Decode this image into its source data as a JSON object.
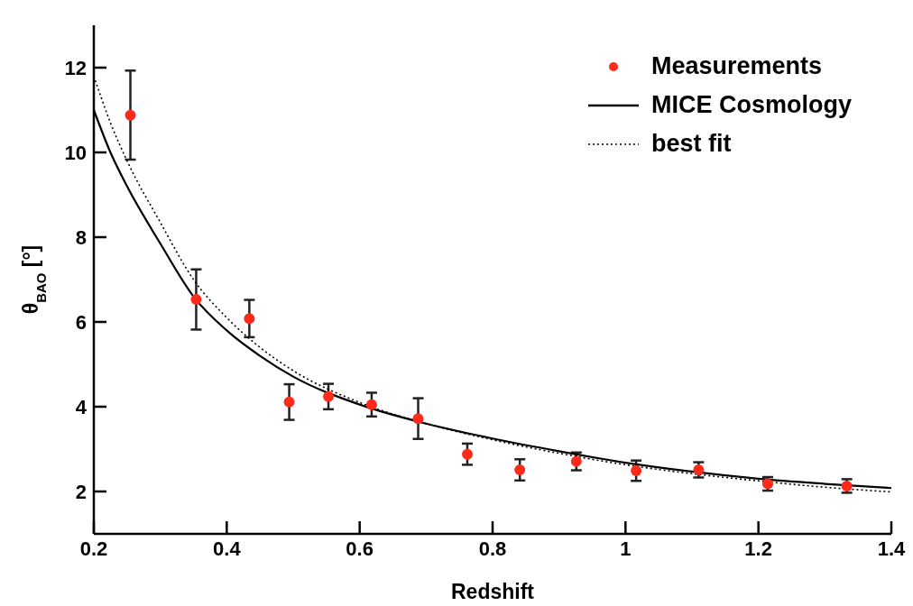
{
  "chart_data": {
    "type": "scatter",
    "xlabel": "Redshift",
    "ylabel": "θ$_{BAO}$ [°]",
    "xlim": [
      0.2,
      1.4
    ],
    "xticks": [
      0.2,
      0.4,
      0.6,
      0.8,
      1,
      1.2,
      1.4
    ],
    "ylim": [
      1,
      13
    ],
    "yticks": [
      2,
      4,
      6,
      8,
      10,
      12
    ],
    "grid": false,
    "legend": "top right",
    "series": [
      {
        "name": "Measurements",
        "color": "#ff2a1a",
        "marker": "circle",
        "x": [
          0.255,
          0.354,
          0.434,
          0.494,
          0.553,
          0.618,
          0.688,
          0.762,
          0.841,
          0.926,
          1.016,
          1.11,
          1.214,
          1.333
        ],
        "values": [
          10.88,
          6.53,
          6.08,
          4.11,
          4.24,
          4.05,
          3.72,
          2.88,
          2.51,
          2.71,
          2.49,
          2.51,
          2.18,
          2.13
        ],
        "errors": [
          1.05,
          0.71,
          0.44,
          0.42,
          0.3,
          0.28,
          0.48,
          0.25,
          0.25,
          0.21,
          0.24,
          0.18,
          0.16,
          0.16
        ]
      },
      {
        "name": "MICE Cosmology",
        "type": "line",
        "color": "#000000",
        "marker": "none",
        "line_style": "solid",
        "x": [
          0.2,
          0.225,
          0.25,
          0.3,
          0.35,
          0.4,
          0.45,
          0.5,
          0.6,
          0.7,
          0.8,
          0.9,
          1.0,
          1.1,
          1.2,
          1.3,
          1.4
        ],
        "values": [
          11.0,
          10.0,
          9.2,
          7.85,
          6.6,
          5.8,
          5.2,
          4.71,
          4.05,
          3.6,
          3.25,
          2.95,
          2.68,
          2.47,
          2.3,
          2.18,
          2.08
        ]
      },
      {
        "name": "best fit",
        "type": "line",
        "color": "#000000",
        "marker": "none",
        "line_style": "dotted",
        "x": [
          0.2,
          0.225,
          0.25,
          0.3,
          0.35,
          0.4,
          0.45,
          0.5,
          0.6,
          0.7,
          0.8,
          0.9,
          1.0,
          1.1,
          1.2,
          1.3,
          1.4
        ],
        "values": [
          11.8,
          10.7,
          9.8,
          8.35,
          7.0,
          6.1,
          5.4,
          4.85,
          4.1,
          3.6,
          3.22,
          2.9,
          2.63,
          2.42,
          2.25,
          2.1,
          1.99
        ]
      }
    ]
  }
}
